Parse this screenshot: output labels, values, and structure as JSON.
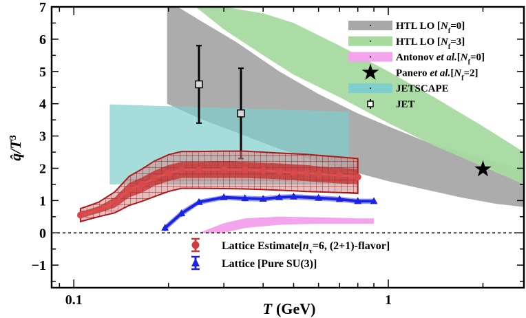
{
  "chart_data": {
    "type": "line",
    "title": "",
    "xlabel": "T",
    "xlabel_unit": "(GeV)",
    "ylabel": "q̂/T³",
    "xscale": "log",
    "xlim": [
      0.085,
      2.7
    ],
    "ylim": [
      -1.7,
      7
    ],
    "x_tick_labels": [
      {
        "value": 0.1,
        "label": "0.1"
      },
      {
        "value": 1,
        "label": "1"
      }
    ],
    "y_tick_labels": [
      {
        "value": -1,
        "label": "−1"
      },
      {
        "value": 0,
        "label": "0"
      },
      {
        "value": 1,
        "label": "1"
      },
      {
        "value": 2,
        "label": "2"
      },
      {
        "value": 3,
        "label": "3"
      },
      {
        "value": 4,
        "label": "4"
      },
      {
        "value": 5,
        "label": "5"
      },
      {
        "value": 6,
        "label": "6"
      },
      {
        "value": 7,
        "label": "7"
      }
    ],
    "zero_line": true,
    "bands": [
      {
        "name": "HTL LO [Nf=0]",
        "color": "#a8a8a8",
        "x": [
          0.198,
          0.25,
          0.33,
          0.45,
          0.6,
          0.8,
          1.0,
          1.3,
          1.7,
          2.2,
          2.7
        ],
        "upper": [
          7.2,
          6.6,
          5.9,
          5.0,
          4.3,
          3.7,
          3.3,
          2.85,
          2.5,
          2.2,
          1.95
        ],
        "lower": [
          4.0,
          3.55,
          3.1,
          2.6,
          2.2,
          1.85,
          1.6,
          1.35,
          1.1,
          0.9,
          0.8
        ]
      },
      {
        "name": "HTL LO [Nf=3]",
        "color": "#a8daa0",
        "x": [
          0.23,
          0.3,
          0.4,
          0.5,
          0.7,
          1.0,
          1.4,
          2.0,
          2.7
        ],
        "upper": [
          7.2,
          7.0,
          6.8,
          6.5,
          5.8,
          5.0,
          4.2,
          3.3,
          2.5
        ],
        "lower": [
          7.2,
          6.3,
          5.5,
          4.9,
          4.2,
          3.4,
          2.7,
          2.05,
          1.5
        ]
      },
      {
        "name": "Antonov et al.[Nf=0]",
        "color": "#f4a4ec",
        "x": [
          0.25,
          0.3,
          0.35,
          0.45,
          0.6,
          0.8,
          0.9
        ],
        "upper": [
          0.0,
          0.3,
          0.45,
          0.5,
          0.48,
          0.45,
          0.45
        ],
        "lower": [
          0.0,
          0.0,
          0.15,
          0.25,
          0.28,
          0.28,
          0.28
        ]
      },
      {
        "name": "JETSCAPE",
        "color": "#7fcfcf",
        "x": [
          0.13,
          0.75
        ],
        "upper": [
          3.98,
          3.75
        ],
        "lower": [
          1.5,
          1.5
        ]
      }
    ],
    "series": [
      {
        "name": "Panero et al.[Nf=2]",
        "type": "scatter",
        "marker": "star",
        "color": "#000000",
        "x": [
          2.0
        ],
        "y": [
          1.97
        ]
      },
      {
        "name": "JET",
        "type": "errorbar",
        "marker": "square",
        "color": "#000000",
        "x": [
          0.25,
          0.34
        ],
        "y": [
          4.6,
          3.7
        ],
        "err_low": [
          1.2,
          1.4
        ],
        "err_high": [
          1.2,
          1.4
        ]
      },
      {
        "name": "Lattice Estimate[nτ=6, (2+1)-flavor]",
        "type": "line_band",
        "marker": "circle",
        "color": "#cf3a3a",
        "x": [
          0.105,
          0.12,
          0.135,
          0.15,
          0.165,
          0.18,
          0.2,
          0.22,
          0.25,
          0.3,
          0.35,
          0.4,
          0.45,
          0.5,
          0.55,
          0.6,
          0.7,
          0.8
        ],
        "y": [
          0.55,
          0.72,
          0.95,
          1.35,
          1.5,
          1.7,
          1.85,
          1.95,
          1.95,
          1.96,
          1.95,
          1.93,
          1.9,
          1.87,
          1.85,
          1.82,
          1.78,
          1.73
        ],
        "inner_low": [
          0.45,
          0.62,
          0.78,
          1.1,
          1.25,
          1.45,
          1.6,
          1.7,
          1.7,
          1.7,
          1.7,
          1.68,
          1.66,
          1.63,
          1.6,
          1.57,
          1.53,
          1.5
        ],
        "inner_high": [
          0.65,
          0.82,
          1.1,
          1.55,
          1.72,
          1.92,
          2.1,
          2.2,
          2.2,
          2.22,
          2.2,
          2.17,
          2.15,
          2.12,
          2.1,
          2.06,
          2.02,
          1.97
        ],
        "outer_low": [
          0.35,
          0.5,
          0.62,
          0.85,
          0.98,
          1.12,
          1.28,
          1.38,
          1.38,
          1.37,
          1.36,
          1.34,
          1.32,
          1.3,
          1.28,
          1.27,
          1.25,
          1.22
        ],
        "outer_high": [
          0.75,
          0.95,
          1.27,
          1.75,
          1.98,
          2.22,
          2.42,
          2.52,
          2.52,
          2.53,
          2.53,
          2.5,
          2.47,
          2.45,
          2.43,
          2.4,
          2.35,
          2.3
        ]
      },
      {
        "name": "Lattice [Pure SU(3)]",
        "type": "line_band",
        "marker": "triangle",
        "color": "#1a24e0",
        "x": [
          0.195,
          0.22,
          0.25,
          0.3,
          0.35,
          0.4,
          0.45,
          0.5,
          0.6,
          0.7,
          0.8,
          0.9
        ],
        "y": [
          0.15,
          0.6,
          0.95,
          1.1,
          1.07,
          1.05,
          1.1,
          1.12,
          1.08,
          1.04,
          0.98,
          0.98
        ],
        "band_low": [
          0.05,
          0.5,
          0.87,
          1.02,
          0.98,
          0.97,
          1.02,
          1.03,
          0.99,
          0.96,
          0.9,
          0.9
        ],
        "band_high": [
          0.25,
          0.7,
          1.03,
          1.17,
          1.15,
          1.13,
          1.18,
          1.2,
          1.16,
          1.12,
          1.06,
          1.06
        ]
      }
    ],
    "legend_upper": {
      "position": "top-right",
      "entries": [
        {
          "name": "HTL LO [Nf=0]",
          "symbol": "band",
          "color": "#a8a8a8",
          "parts": [
            {
              "t": "HTL LO ["
            },
            {
              "t": "N",
              "i": true
            },
            {
              "t": "f",
              "sub": true
            },
            {
              "t": "=0]"
            }
          ]
        },
        {
          "name": "HTL LO [Nf=3]",
          "symbol": "band",
          "color": "#a8daa0",
          "parts": [
            {
              "t": "HTL LO ["
            },
            {
              "t": "N",
              "i": true
            },
            {
              "t": "f",
              "sub": true
            },
            {
              "t": "=3]"
            }
          ]
        },
        {
          "name": "Antonov et al.[Nf=0]",
          "symbol": "band",
          "color": "#f4a4ec",
          "parts": [
            {
              "t": "Antonov "
            },
            {
              "t": "et al.",
              "i": true
            },
            {
              "t": "["
            },
            {
              "t": "N",
              "i": true
            },
            {
              "t": "f",
              "sub": true
            },
            {
              "t": "=0]"
            }
          ]
        },
        {
          "name": "Panero et al.[Nf=2]",
          "symbol": "star",
          "color": "#000000",
          "parts": [
            {
              "t": "Panero "
            },
            {
              "t": "et al.",
              "i": true
            },
            {
              "t": "["
            },
            {
              "t": "N",
              "i": true
            },
            {
              "t": "f",
              "sub": true
            },
            {
              "t": "=2]"
            }
          ]
        },
        {
          "name": "JETSCAPE",
          "symbol": "band",
          "color": "#7fcfcf",
          "parts": [
            {
              "t": "JETSCAPE"
            }
          ]
        },
        {
          "name": "JET",
          "symbol": "square",
          "color": "#000000",
          "parts": [
            {
              "t": "JET"
            }
          ]
        }
      ]
    },
    "legend_lower": {
      "position": "bottom-center",
      "entries": [
        {
          "name": "Lattice Estimate[nτ=6, (2+1)-flavor]",
          "symbol": "circle-err",
          "color": "#cf3a3a",
          "parts": [
            {
              "t": "Lattice Estimate["
            },
            {
              "t": "n",
              "i": true
            },
            {
              "t": "τ",
              "sub": true
            },
            {
              "t": "=6, (2+1)-flavor]"
            }
          ]
        },
        {
          "name": "Lattice [Pure SU(3)]",
          "symbol": "triangle-err",
          "color": "#1a24e0",
          "parts": [
            {
              "t": "Lattice [Pure SU(3)]"
            }
          ]
        }
      ]
    }
  }
}
